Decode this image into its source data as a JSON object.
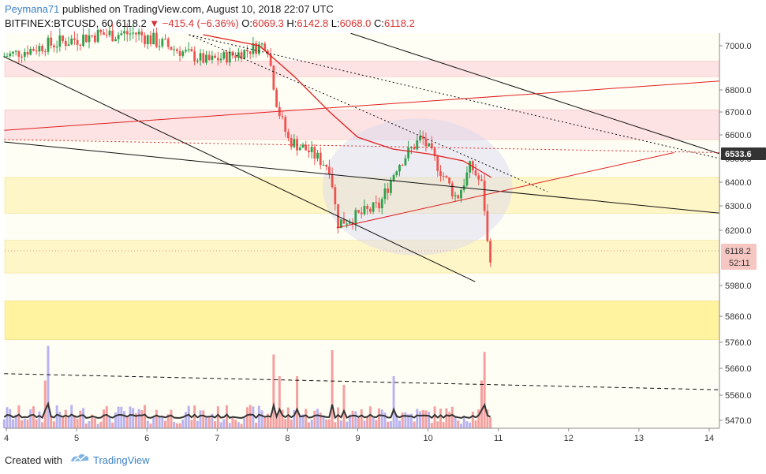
{
  "header": {
    "author": "Peymana71",
    "published_text": "published on TradingView.com, August 10, 2018 22:07 UTC",
    "symbol": "BITFINEX:BTCUSD, 60",
    "last": "6118.2",
    "change": "−415.4 (−6.36%)",
    "o_label": "O:",
    "o": "6069.3",
    "h_label": "H:",
    "h": "6142.8",
    "l_label": "L:",
    "l": "6068.0",
    "c_label": "C:",
    "c": "6118.2"
  },
  "footer": {
    "created_with": "Created with",
    "brand": "TradingView"
  },
  "colors": {
    "up": "#2ea04a",
    "down": "#ef5350",
    "ma": "#e02020",
    "zone_red": "#fde3e3",
    "zone_yellow": "#fff6c8",
    "zone_yellow_strong": "#fff3a0",
    "vol_up": "#b9b3f0",
    "vol_down": "#f4a0a0",
    "vol_ma": "#333333"
  },
  "chart_data": {
    "type": "candlestick",
    "symbol": "BITFINEX:BTCUSD",
    "interval": "60",
    "y_axis": {
      "ticks": [
        "7000.0",
        "6800.0",
        "6700.0",
        "6600.0",
        "6500.0",
        "6400.0",
        "6300.0",
        "6200.0",
        "5980.0",
        "5860.0",
        "5760.0",
        "5660.0",
        "5560.0",
        "5470.0"
      ],
      "ylim": [
        5430,
        7050
      ],
      "scale": "log"
    },
    "x_axis": {
      "ticks": [
        "4",
        "5",
        "6",
        "7",
        "8",
        "9",
        "10",
        "11",
        "12",
        "13",
        "14"
      ]
    },
    "price_labels": {
      "level_line": "6533.6",
      "last_price": "6118.2",
      "countdown": "52:11"
    },
    "zones": [
      {
        "color": "red",
        "from": 6860,
        "to": 6930
      },
      {
        "color": "red",
        "from": 6580,
        "to": 6710
      },
      {
        "color": "yellow",
        "from": 6270,
        "to": 6420
      },
      {
        "color": "yellow",
        "from": 6030,
        "to": 6160
      },
      {
        "color": "yellow_strong",
        "from": 5770,
        "to": 5920
      }
    ],
    "anchors": [
      {
        "day": 3.97,
        "price": 6950
      },
      {
        "day": 4.6,
        "price": 7000
      },
      {
        "day": 5.3,
        "price": 7040
      },
      {
        "day": 5.9,
        "price": 7045
      },
      {
        "day": 6.4,
        "price": 6990
      },
      {
        "day": 6.9,
        "price": 6930
      },
      {
        "day": 7.3,
        "price": 6960
      },
      {
        "day": 7.75,
        "price": 7010
      },
      {
        "day": 7.9,
        "price": 6720
      },
      {
        "day": 8.05,
        "price": 6580
      },
      {
        "day": 8.35,
        "price": 6530
      },
      {
        "day": 8.65,
        "price": 6460
      },
      {
        "day": 8.75,
        "price": 6230
      },
      {
        "day": 9.05,
        "price": 6260
      },
      {
        "day": 9.35,
        "price": 6300
      },
      {
        "day": 9.6,
        "price": 6470
      },
      {
        "day": 9.95,
        "price": 6590
      },
      {
        "day": 10.2,
        "price": 6460
      },
      {
        "day": 10.45,
        "price": 6330
      },
      {
        "day": 10.65,
        "price": 6470
      },
      {
        "day": 10.82,
        "price": 6380
      },
      {
        "day": 10.9,
        "price": 6100
      }
    ],
    "ma_line": [
      {
        "day": 6.8,
        "price": 7040
      },
      {
        "day": 7.6,
        "price": 7000
      },
      {
        "day": 8.1,
        "price": 6860
      },
      {
        "day": 8.6,
        "price": 6700
      },
      {
        "day": 9.0,
        "price": 6590
      },
      {
        "day": 9.5,
        "price": 6540
      },
      {
        "day": 10.0,
        "price": 6520
      },
      {
        "day": 10.5,
        "price": 6490
      },
      {
        "day": 10.9,
        "price": 6420
      }
    ],
    "trendlines": [
      {
        "style": "solid",
        "color": "black",
        "from": {
          "day": 3.97,
          "price": 6950
        },
        "to": {
          "day": 10.67,
          "price": 5995
        }
      },
      {
        "style": "solid",
        "color": "black",
        "from": {
          "day": 3.97,
          "price": 6570
        },
        "to": {
          "day": 14.15,
          "price": 6270
        }
      },
      {
        "style": "solid",
        "color": "black",
        "from": {
          "day": 8.9,
          "price": 7045
        },
        "to": {
          "day": 14.15,
          "price": 6520
        }
      },
      {
        "style": "dotted",
        "color": "black",
        "from": {
          "day": 6.6,
          "price": 7040
        },
        "to": {
          "day": 11.7,
          "price": 6360
        }
      },
      {
        "style": "dotted",
        "color": "black",
        "from": {
          "day": 6.6,
          "price": 7040
        },
        "to": {
          "day": 14.15,
          "price": 6500
        }
      },
      {
        "style": "solid",
        "color": "red",
        "from": {
          "day": 3.97,
          "price": 6620
        },
        "to": {
          "day": 14.15,
          "price": 6840
        }
      },
      {
        "style": "solid",
        "color": "red",
        "from": {
          "day": 8.7,
          "price": 6210
        },
        "to": {
          "day": 13.5,
          "price": 6525
        }
      },
      {
        "style": "dotted",
        "color": "red",
        "from": {
          "day": 3.97,
          "price": 6580
        },
        "to": {
          "day": 14.15,
          "price": 6525
        }
      },
      {
        "style": "dashed",
        "color": "black",
        "from": {
          "day": 3.97,
          "price": 5640
        },
        "to": {
          "day": 14.15,
          "price": 5580
        }
      }
    ],
    "ellipse": {
      "center": {
        "day": 9.85,
        "price": 6380
      },
      "rx_days": 1.35,
      "ry_price": 280
    },
    "volume_spikes": [
      {
        "day": 4.58,
        "level": 0.95,
        "dir": "down"
      },
      {
        "day": 4.55,
        "level": 0.55,
        "dir": "down"
      },
      {
        "day": 7.8,
        "level": 0.85,
        "dir": "down"
      },
      {
        "day": 7.88,
        "level": 0.6,
        "dir": "down"
      },
      {
        "day": 8.15,
        "level": 0.6,
        "dir": "down"
      },
      {
        "day": 8.65,
        "level": 0.9,
        "dir": "down"
      },
      {
        "day": 8.8,
        "level": 0.5,
        "dir": "up"
      },
      {
        "day": 9.5,
        "level": 0.6,
        "dir": "up"
      },
      {
        "day": 10.82,
        "level": 0.88,
        "dir": "down"
      },
      {
        "day": 10.78,
        "level": 0.55,
        "dir": "down"
      }
    ]
  }
}
